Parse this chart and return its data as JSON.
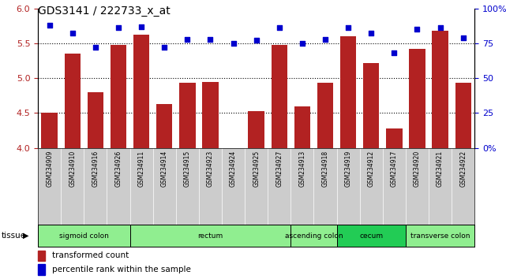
{
  "title": "GDS3141 / 222733_x_at",
  "samples": [
    "GSM234909",
    "GSM234910",
    "GSM234916",
    "GSM234926",
    "GSM234911",
    "GSM234914",
    "GSM234915",
    "GSM234923",
    "GSM234924",
    "GSM234925",
    "GSM234927",
    "GSM234913",
    "GSM234918",
    "GSM234919",
    "GSM234912",
    "GSM234917",
    "GSM234920",
    "GSM234921",
    "GSM234922"
  ],
  "bar_values": [
    4.5,
    5.35,
    4.8,
    5.48,
    5.62,
    4.63,
    4.93,
    4.95,
    4.0,
    4.53,
    5.48,
    4.6,
    4.93,
    5.6,
    5.22,
    4.28,
    5.42,
    5.68,
    4.93
  ],
  "pct_values": [
    88,
    82,
    72,
    86,
    87,
    72,
    78,
    78,
    75,
    77,
    86,
    75,
    78,
    86,
    82,
    68,
    85,
    86,
    79
  ],
  "ylim_left": [
    4.0,
    6.0
  ],
  "ylim_right": [
    0,
    100
  ],
  "yticks_left": [
    4.0,
    4.5,
    5.0,
    5.5,
    6.0
  ],
  "yticks_right": [
    0,
    25,
    50,
    75,
    100
  ],
  "ytick_labels_right": [
    "0%",
    "25",
    "50",
    "75",
    "100%"
  ],
  "bar_color": "#B22222",
  "dot_color": "#0000CD",
  "tissue_groups": [
    {
      "label": "sigmoid colon",
      "start": 0,
      "end": 3,
      "color": "#90EE90"
    },
    {
      "label": "rectum",
      "start": 4,
      "end": 10,
      "color": "#90EE90"
    },
    {
      "label": "ascending colon",
      "start": 11,
      "end": 12,
      "color": "#90EE90"
    },
    {
      "label": "cecum",
      "start": 13,
      "end": 15,
      "color": "#22CC55"
    },
    {
      "label": "transverse colon",
      "start": 16,
      "end": 18,
      "color": "#90EE90"
    }
  ],
  "legend_bar_label": "transformed count",
  "legend_dot_label": "percentile rank within the sample",
  "hlines": [
    4.5,
    5.0,
    5.5
  ],
  "plot_bg": "#FFFFFF",
  "xtick_bg": "#CCCCCC",
  "tissue_label": "tissue"
}
